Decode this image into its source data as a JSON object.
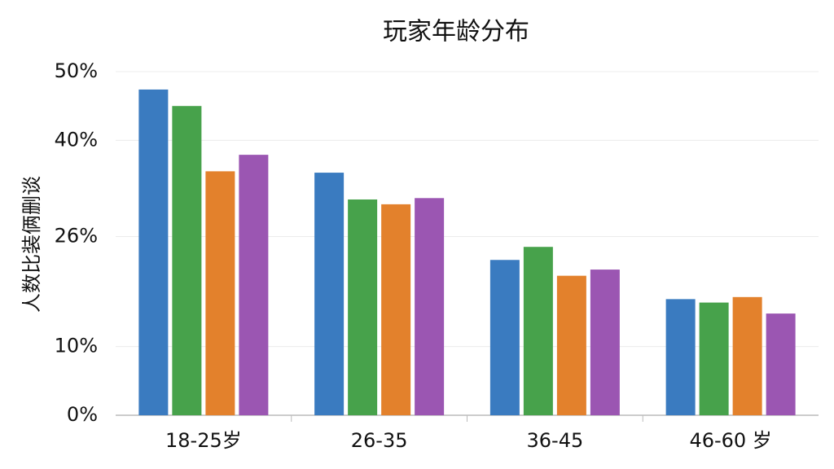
{
  "chart_data": {
    "type": "bar",
    "title": "玩家年龄分布",
    "y_label": "人数比装俩删谈",
    "categories": [
      "18-25岁",
      "26-35",
      "36-45",
      "46-60 岁"
    ],
    "series": [
      {
        "color": "#3a7bc0",
        "values": [
          47.4,
          35.3,
          22.6,
          16.9
        ]
      },
      {
        "color": "#47a24b",
        "values": [
          45.0,
          31.4,
          24.5,
          16.4
        ]
      },
      {
        "color": "#e3812c",
        "values": [
          35.5,
          30.7,
          20.3,
          17.2
        ]
      },
      {
        "color": "#9b56b2",
        "values": [
          37.9,
          31.6,
          21.2,
          14.8
        ]
      }
    ],
    "ylim": [
      0,
      50
    ],
    "yticks": [
      {
        "value": 0,
        "label": "0%"
      },
      {
        "value": 10,
        "label": "10%"
      },
      {
        "value": 26,
        "label": "26%"
      },
      {
        "value": 40,
        "label": "40%"
      },
      {
        "value": 50,
        "label": "50%"
      }
    ],
    "grid": true
  }
}
